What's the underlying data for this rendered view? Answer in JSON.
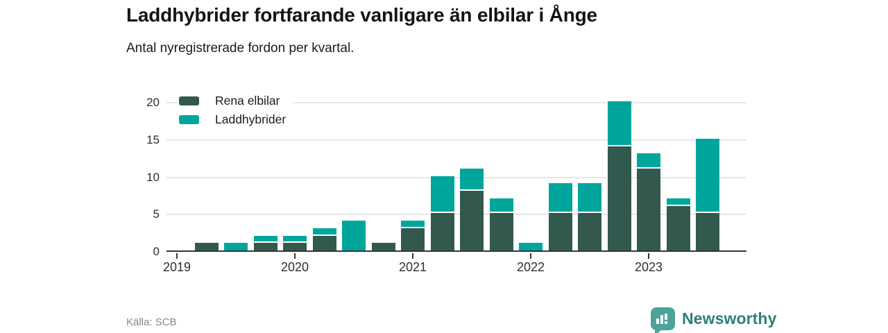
{
  "header": {
    "title": "Laddhybrider fortfarande vanligare än elbilar i Ånge",
    "subtitle": "Antal nyregistrerade fordon per kvartal."
  },
  "chart_data": {
    "type": "bar",
    "stacked": true,
    "title": "Laddhybrider fortfarande vanligare än elbilar i Ånge",
    "subtitle": "Antal nyregistrerade fordon per kvartal.",
    "xlabel": "",
    "ylabel": "",
    "categories": [
      "2019 Q1",
      "2019 Q2",
      "2019 Q3",
      "2019 Q4",
      "2020 Q1",
      "2020 Q2",
      "2020 Q3",
      "2020 Q4",
      "2021 Q1",
      "2021 Q2",
      "2021 Q3",
      "2021 Q4",
      "2022 Q1",
      "2022 Q2",
      "2022 Q3",
      "2022 Q4",
      "2023 Q1",
      "2023 Q2",
      "2023 Q3"
    ],
    "series": [
      {
        "name": "Rena elbilar",
        "color": "#33594f",
        "values": [
          0,
          1,
          0,
          1,
          1,
          2,
          0,
          1,
          3,
          5,
          8,
          5,
          0,
          5,
          5,
          14,
          11,
          6,
          5
        ]
      },
      {
        "name": "Laddhybrider",
        "color": "#00a69c",
        "values": [
          0,
          0,
          1,
          1,
          1,
          1,
          4,
          0,
          1,
          5,
          3,
          2,
          1,
          4,
          4,
          6,
          2,
          1,
          10
        ]
      }
    ],
    "x_tick_labels": [
      "2019",
      "2020",
      "2021",
      "2022",
      "2023"
    ],
    "y_ticks": [
      0,
      5,
      10,
      15,
      20
    ],
    "ylim": [
      0,
      20
    ],
    "grid": true,
    "legend_position": "top-left"
  },
  "legend": {
    "items": [
      {
        "label": "Rena elbilar",
        "color": "#33594f"
      },
      {
        "label": "Laddhybrider",
        "color": "#00a69c"
      }
    ]
  },
  "footer": {
    "source": "Källa: SCB",
    "brand": "Newsworthy"
  },
  "colors": {
    "electric": "#33594f",
    "hybrid": "#00a69c",
    "axis": "#363636",
    "grid": "#e7e7e7",
    "brand": "#2e7f78",
    "brand_icon": "#4da39a"
  }
}
